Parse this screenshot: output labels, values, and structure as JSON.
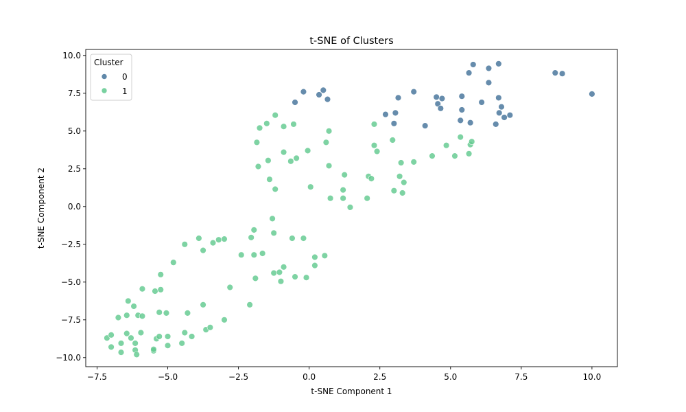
{
  "chart_data": {
    "type": "scatter",
    "title": "t-SNE of Clusters",
    "xlabel": "t-SNE Component 1",
    "ylabel": "t-SNE Component 2",
    "xlim": [
      -7.9,
      10.9
    ],
    "ylim": [
      -10.6,
      10.4
    ],
    "xticks": [
      -7.5,
      -5.0,
      -2.5,
      0.0,
      2.5,
      5.0,
      7.5,
      10.0
    ],
    "yticks": [
      -10.0,
      -7.5,
      -5.0,
      -2.5,
      0.0,
      2.5,
      5.0,
      7.5,
      10.0
    ],
    "xtick_labels": [
      "−7.5",
      "−5.0",
      "−2.5",
      "0.0",
      "2.5",
      "5.0",
      "7.5",
      "10.0"
    ],
    "ytick_labels": [
      "−10.0",
      "−7.5",
      "−5.0",
      "−2.5",
      "0.0",
      "2.5",
      "5.0",
      "7.5",
      "10.0"
    ],
    "grid": false,
    "legend": {
      "title": "Cluster",
      "placement": "top-left"
    },
    "series": [
      {
        "name": "0",
        "color": "#44739a",
        "points": [
          [
            -0.5,
            6.9
          ],
          [
            -0.2,
            7.6
          ],
          [
            0.35,
            7.4
          ],
          [
            0.5,
            7.7
          ],
          [
            0.65,
            7.1
          ],
          [
            2.7,
            6.1
          ],
          [
            3.0,
            5.5
          ],
          [
            3.05,
            6.2
          ],
          [
            3.15,
            7.2
          ],
          [
            3.7,
            7.6
          ],
          [
            4.1,
            5.35
          ],
          [
            4.5,
            7.25
          ],
          [
            4.55,
            6.8
          ],
          [
            4.65,
            6.5
          ],
          [
            4.7,
            7.15
          ],
          [
            5.35,
            5.7
          ],
          [
            5.4,
            7.3
          ],
          [
            5.4,
            6.4
          ],
          [
            5.65,
            8.85
          ],
          [
            5.7,
            5.55
          ],
          [
            5.8,
            9.4
          ],
          [
            6.1,
            6.9
          ],
          [
            6.35,
            9.15
          ],
          [
            6.35,
            8.2
          ],
          [
            6.6,
            5.45
          ],
          [
            6.7,
            9.45
          ],
          [
            6.7,
            7.2
          ],
          [
            6.72,
            6.2
          ],
          [
            6.8,
            6.6
          ],
          [
            6.9,
            5.9
          ],
          [
            7.1,
            6.05
          ],
          [
            8.7,
            8.85
          ],
          [
            8.95,
            8.8
          ],
          [
            10.0,
            7.45
          ]
        ]
      },
      {
        "name": "1",
        "color": "#62c98f",
        "points": [
          [
            -1.85,
            4.25
          ],
          [
            -1.75,
            5.2
          ],
          [
            -1.8,
            2.65
          ],
          [
            -1.5,
            5.5
          ],
          [
            -1.45,
            3.05
          ],
          [
            -1.4,
            1.8
          ],
          [
            -1.2,
            6.05
          ],
          [
            -1.2,
            1.15
          ],
          [
            -0.9,
            5.3
          ],
          [
            -0.9,
            3.6
          ],
          [
            -0.65,
            3.0
          ],
          [
            -0.55,
            5.45
          ],
          [
            -0.45,
            3.2
          ],
          [
            -0.05,
            3.7
          ],
          [
            0.05,
            1.3
          ],
          [
            0.6,
            4.25
          ],
          [
            0.7,
            5.0
          ],
          [
            0.7,
            2.7
          ],
          [
            0.75,
            0.55
          ],
          [
            1.2,
            1.1
          ],
          [
            1.2,
            0.55
          ],
          [
            1.25,
            2.1
          ],
          [
            1.45,
            -0.05
          ],
          [
            2.05,
            0.55
          ],
          [
            2.1,
            2.0
          ],
          [
            2.2,
            1.85
          ],
          [
            2.3,
            4.05
          ],
          [
            2.3,
            5.45
          ],
          [
            2.4,
            3.65
          ],
          [
            2.95,
            4.4
          ],
          [
            3.0,
            1.05
          ],
          [
            3.2,
            2.0
          ],
          [
            3.25,
            2.9
          ],
          [
            3.3,
            0.9
          ],
          [
            3.35,
            1.6
          ],
          [
            3.7,
            2.95
          ],
          [
            4.35,
            3.35
          ],
          [
            4.85,
            4.05
          ],
          [
            5.15,
            3.35
          ],
          [
            5.35,
            4.6
          ],
          [
            5.65,
            3.5
          ],
          [
            5.7,
            4.1
          ],
          [
            5.75,
            4.3
          ],
          [
            -7.15,
            -8.7
          ],
          [
            -7.0,
            -8.5
          ],
          [
            -7.0,
            -9.3
          ],
          [
            -6.75,
            -7.35
          ],
          [
            -6.65,
            -9.05
          ],
          [
            -6.65,
            -9.65
          ],
          [
            -6.45,
            -7.2
          ],
          [
            -6.45,
            -8.4
          ],
          [
            -6.4,
            -6.25
          ],
          [
            -6.3,
            -8.7
          ],
          [
            -6.2,
            -6.6
          ],
          [
            -6.15,
            -9.05
          ],
          [
            -6.15,
            -9.5
          ],
          [
            -6.1,
            -9.8
          ],
          [
            -6.05,
            -7.2
          ],
          [
            -5.95,
            -8.35
          ],
          [
            -5.9,
            -7.25
          ],
          [
            -5.9,
            -5.45
          ],
          [
            -5.5,
            -9.55
          ],
          [
            -5.5,
            -9.45
          ],
          [
            -5.45,
            -5.6
          ],
          [
            -5.4,
            -8.75
          ],
          [
            -5.3,
            -8.6
          ],
          [
            -5.3,
            -7.0
          ],
          [
            -5.25,
            -5.5
          ],
          [
            -5.25,
            -4.5
          ],
          [
            -5.05,
            -7.05
          ],
          [
            -5.0,
            -8.6
          ],
          [
            -5.0,
            -9.2
          ],
          [
            -4.8,
            -3.7
          ],
          [
            -4.5,
            -9.05
          ],
          [
            -4.4,
            -2.5
          ],
          [
            -4.4,
            -8.35
          ],
          [
            -4.3,
            -7.05
          ],
          [
            -4.15,
            -8.6
          ],
          [
            -3.9,
            -2.1
          ],
          [
            -3.75,
            -2.9
          ],
          [
            -3.75,
            -6.5
          ],
          [
            -3.65,
            -8.15
          ],
          [
            -3.5,
            -8.0
          ],
          [
            -3.4,
            -2.4
          ],
          [
            -3.2,
            -2.2
          ],
          [
            -3.0,
            -2.15
          ],
          [
            -3.0,
            -7.5
          ],
          [
            -2.8,
            -5.35
          ],
          [
            -2.4,
            -3.2
          ],
          [
            -2.1,
            -6.5
          ],
          [
            -2.05,
            -2.05
          ],
          [
            -1.95,
            -1.55
          ],
          [
            -1.95,
            -3.2
          ],
          [
            -1.9,
            -4.75
          ],
          [
            -1.65,
            -3.1
          ],
          [
            -1.3,
            -0.8
          ],
          [
            -1.25,
            -4.4
          ],
          [
            -1.25,
            -1.75
          ],
          [
            -1.05,
            -4.35
          ],
          [
            -1.0,
            -4.95
          ],
          [
            -0.9,
            -4.0
          ],
          [
            -0.6,
            -2.1
          ],
          [
            -0.5,
            -4.65
          ],
          [
            -0.2,
            -2.1
          ],
          [
            -0.1,
            -4.7
          ],
          [
            0.2,
            -3.9
          ],
          [
            0.2,
            -3.35
          ],
          [
            0.55,
            -3.25
          ]
        ]
      }
    ]
  }
}
